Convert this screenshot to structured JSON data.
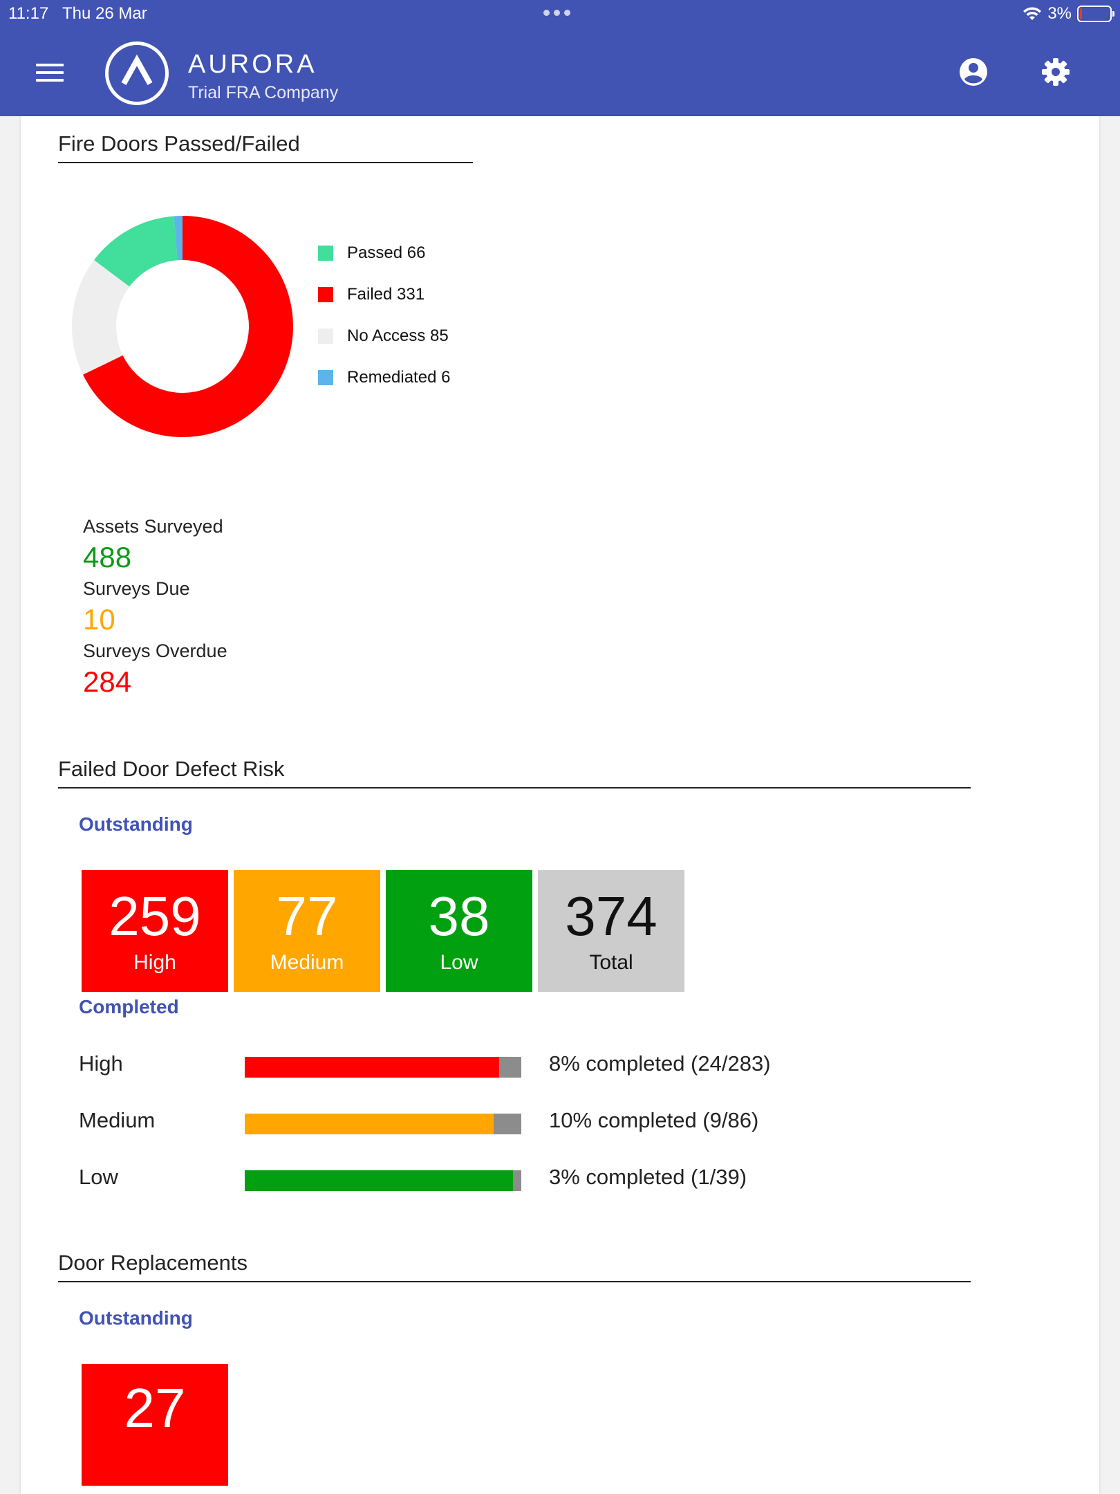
{
  "status_bar": {
    "time": "11:17",
    "date": "Thu 26 Mar",
    "battery": "3%",
    "battery_level": 0.03
  },
  "header": {
    "brand": "AURORA",
    "company": "Trial FRA Company",
    "icons": {
      "menu": "menu-icon",
      "logo": "aurora-logo-icon",
      "account": "account-circle-icon",
      "settings": "gear-icon"
    },
    "color": "#4153b3"
  },
  "fire_doors": {
    "title": "Fire Doors Passed/Failed",
    "legend": [
      {
        "label": "Passed 66",
        "value": 66,
        "color": "#42de9b"
      },
      {
        "label": "Failed 331",
        "value": 331,
        "color": "#ff0000"
      },
      {
        "label": "No Access 85",
        "value": 85,
        "color": "#eeeeee"
      },
      {
        "label": "Remediated 6",
        "value": 6,
        "color": "#5db4ea"
      }
    ]
  },
  "chart_data": {
    "type": "pie",
    "title": "Fire Doors Passed/Failed",
    "labels": [
      "Failed",
      "No Access",
      "Passed",
      "Remediated"
    ],
    "values": [
      331,
      85,
      66,
      6
    ],
    "colors": [
      "#ff0000",
      "#eeeeee",
      "#42de9b",
      "#5db4ea"
    ],
    "legend": "right"
  },
  "stats": [
    {
      "label": "Assets Surveyed",
      "value": "488",
      "color": "#0b9a1a"
    },
    {
      "label": "Surveys Due",
      "value": "10",
      "color": "#ffa600"
    },
    {
      "label": "Surveys Overdue",
      "value": "284",
      "color": "#ff0000"
    }
  ],
  "defect_risk": {
    "title": "Failed Door Defect Risk",
    "outstanding_label": "Outstanding",
    "tiles": [
      {
        "num": "259",
        "label": "High"
      },
      {
        "num": "77",
        "label": "Medium"
      },
      {
        "num": "38",
        "label": "Low"
      },
      {
        "num": "374",
        "label": "Total"
      }
    ],
    "completed_label": "Completed",
    "rows": [
      {
        "label": "High",
        "text": "8% completed (24/283)",
        "remaining_fraction": 0.92,
        "color": "#ff0000"
      },
      {
        "label": "Medium",
        "text": "10% completed (9/86)",
        "remaining_fraction": 0.9,
        "color": "#ffa600"
      },
      {
        "label": "Low",
        "text": "3% completed (1/39)",
        "remaining_fraction": 0.97,
        "color": "#00a010"
      }
    ]
  },
  "door_replacements": {
    "title": "Door Replacements",
    "outstanding_label": "Outstanding",
    "tile_num": "27"
  }
}
